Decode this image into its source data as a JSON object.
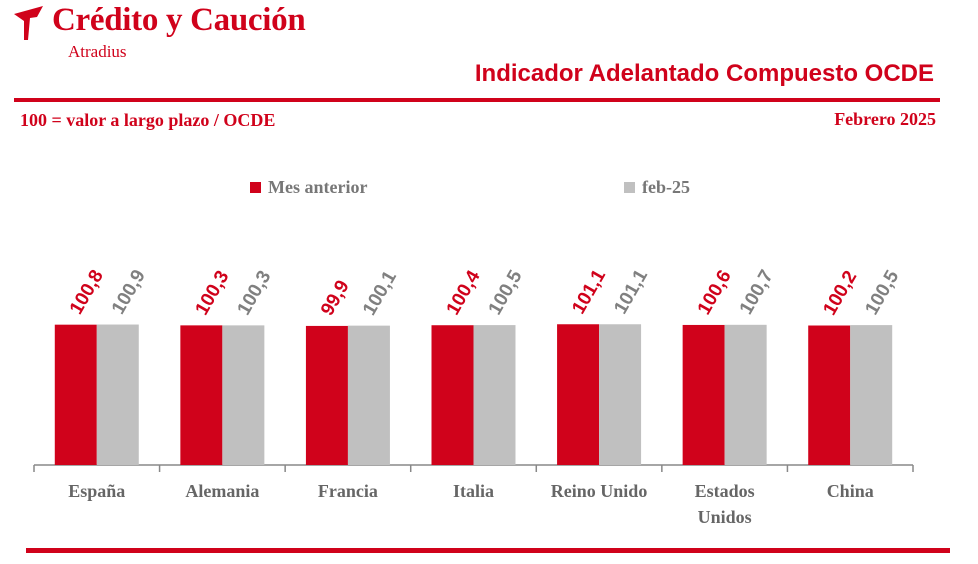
{
  "brand": {
    "name": "Crédito y Caución",
    "sub": "Atradius",
    "logo_icon": "arrow-bird-logo-icon",
    "color": "#d0021b"
  },
  "header": {
    "title": "Indicador Adelantado Compuesto OCDE",
    "subtitle_left": "100 = valor a largo plazo / OCDE",
    "subtitle_right": "Febrero  2025"
  },
  "chart_data": {
    "type": "bar",
    "categories": [
      "España",
      "Alemania",
      "Francia",
      "Italia",
      "Reino Unido",
      "Estados Unidos",
      "China"
    ],
    "category_lines": [
      [
        "España"
      ],
      [
        "Alemania"
      ],
      [
        "Francia"
      ],
      [
        "Italia"
      ],
      [
        "Reino Unido"
      ],
      [
        "Estados",
        "Unidos"
      ],
      [
        "China"
      ]
    ],
    "series": [
      {
        "name": "Mes anterior",
        "color": "#d0021b",
        "values": [
          100.8,
          100.3,
          99.9,
          100.4,
          101.1,
          100.6,
          100.2
        ],
        "labels": [
          "100,8",
          "100,3",
          "99,9",
          "100,4",
          "101,1",
          "100,6",
          "100,2"
        ]
      },
      {
        "name": "feb-25",
        "color": "#c0c0c0",
        "label_color": "#808080",
        "values": [
          100.9,
          100.3,
          100.1,
          100.5,
          101.1,
          100.7,
          100.5
        ],
        "labels": [
          "100,9",
          "100,3",
          "100,1",
          "100,5",
          "101,1",
          "100,7",
          "100,5"
        ]
      }
    ],
    "ylim": [
      0,
      102
    ],
    "grid": false,
    "legend": "top-center",
    "title": "Indicador Adelantado Compuesto OCDE",
    "xlabel": "",
    "ylabel": "100 = valor a largo plazo / OCDE"
  }
}
